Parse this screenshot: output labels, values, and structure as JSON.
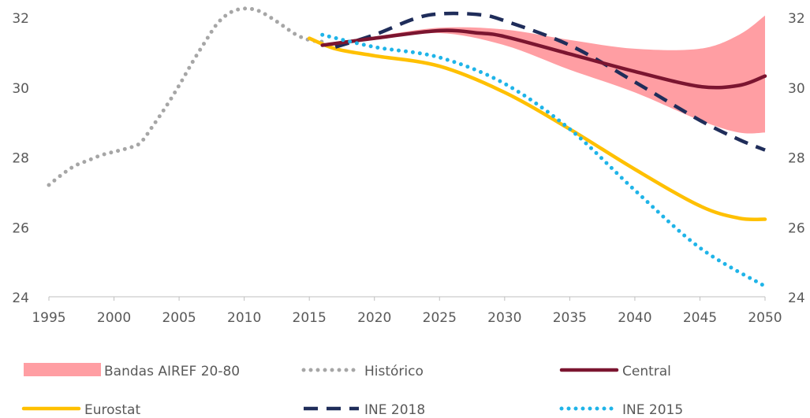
{
  "chart_data": {
    "type": "line",
    "title": "",
    "xlabel": "",
    "ylabel": "",
    "xlim": [
      1995,
      2050
    ],
    "ylim": [
      24,
      32
    ],
    "x_ticks": [
      1995,
      2000,
      2005,
      2010,
      2015,
      2020,
      2025,
      2030,
      2035,
      2040,
      2045,
      2050
    ],
    "y_ticks": [
      24,
      26,
      28,
      30,
      32
    ],
    "grid": false,
    "legend_position": "bottom",
    "band": {
      "name": "Bandas AIREF 20-80",
      "color": "#ff9ea3",
      "x": [
        2016,
        2020,
        2025,
        2030,
        2035,
        2040,
        2045,
        2048,
        2050
      ],
      "upper": [
        31.25,
        31.45,
        31.7,
        31.65,
        31.35,
        31.1,
        31.1,
        31.5,
        32.05
      ],
      "lower": [
        31.2,
        31.35,
        31.55,
        31.2,
        30.5,
        29.85,
        29.05,
        28.7,
        28.7
      ]
    },
    "series": [
      {
        "name": "Histórico",
        "color": "#a6a6a6",
        "style": "dotted",
        "x": [
          1995,
          1996,
          1997,
          1998,
          1999,
          2000,
          2001,
          2002,
          2003,
          2004,
          2005,
          2006,
          2007,
          2008,
          2009,
          2010,
          2011,
          2012,
          2013,
          2014,
          2015,
          2016
        ],
        "y": [
          27.2,
          27.5,
          27.75,
          27.9,
          28.05,
          28.15,
          28.25,
          28.4,
          28.9,
          29.45,
          30.05,
          30.7,
          31.3,
          31.85,
          32.15,
          32.25,
          32.2,
          32.0,
          31.75,
          31.5,
          31.35,
          31.3
        ]
      },
      {
        "name": "Central",
        "color": "#7b1530",
        "style": "solid",
        "x": [
          2016,
          2020,
          2025,
          2028,
          2030,
          2035,
          2040,
          2045,
          2048,
          2050
        ],
        "y": [
          31.2,
          31.4,
          31.62,
          31.55,
          31.45,
          30.95,
          30.45,
          30.02,
          30.05,
          30.32
        ]
      },
      {
        "name": "Eurostat",
        "color": "#ffc000",
        "style": "solid",
        "x": [
          2015,
          2017,
          2020,
          2025,
          2030,
          2035,
          2040,
          2045,
          2048,
          2050
        ],
        "y": [
          31.4,
          31.1,
          30.9,
          30.6,
          29.85,
          28.8,
          27.65,
          26.6,
          26.25,
          26.22
        ]
      },
      {
        "name": "INE 2018",
        "color": "#1f2d5a",
        "style": "dashed",
        "x": [
          2017,
          2020,
          2023,
          2025,
          2028,
          2030,
          2035,
          2040,
          2045,
          2048,
          2050
        ],
        "y": [
          31.15,
          31.5,
          31.95,
          32.1,
          32.08,
          31.9,
          31.2,
          30.15,
          29.05,
          28.5,
          28.2
        ]
      },
      {
        "name": "INE 2015",
        "color": "#1fb4e8",
        "style": "dotted",
        "x": [
          2016,
          2020,
          2025,
          2030,
          2035,
          2040,
          2045,
          2050
        ],
        "y": [
          31.5,
          31.15,
          30.85,
          30.1,
          28.8,
          27.05,
          25.4,
          24.3
        ]
      }
    ]
  }
}
